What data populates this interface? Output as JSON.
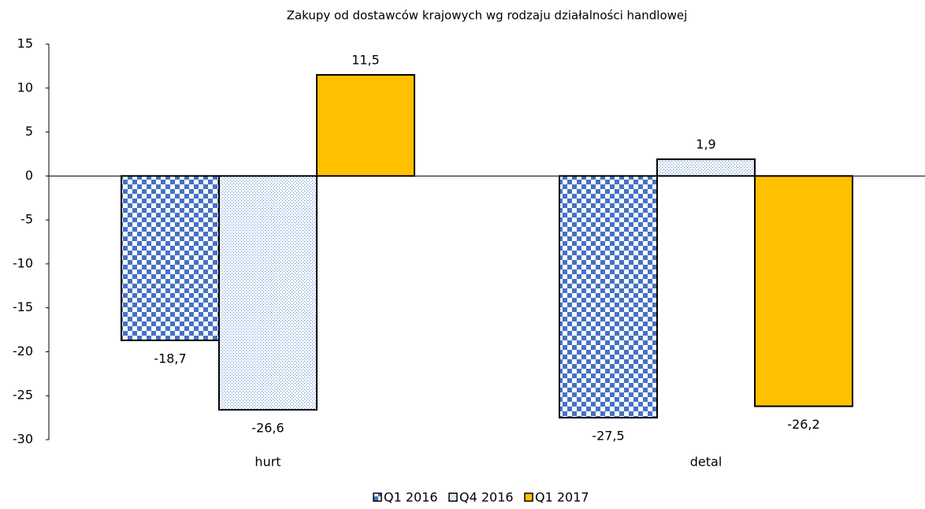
{
  "chart_data": {
    "type": "bar",
    "title": "Zakupy od dostawców krajowych wg rodzaju działalności handlowej",
    "categories": [
      "hurt",
      "detal"
    ],
    "series": [
      {
        "name": "Q1 2016",
        "color": "#4472c4",
        "pattern": "checker",
        "values": [
          -18.7,
          -27.5
        ],
        "value_labels": [
          "-18,7",
          "-27,5"
        ]
      },
      {
        "name": "Q4 2016",
        "color": "#6f9bd1",
        "pattern": "dots",
        "values": [
          -26.6,
          1.9
        ],
        "value_labels": [
          "-26,6",
          "1,9"
        ]
      },
      {
        "name": "Q1 2017",
        "color": "#ffc000",
        "pattern": "solid",
        "values": [
          11.5,
          -26.2
        ],
        "value_labels": [
          "11,5",
          "-26,2"
        ]
      }
    ],
    "ylim": [
      -30,
      15
    ],
    "yticks": [
      -30,
      -25,
      -20,
      -15,
      -10,
      -5,
      0,
      5,
      10,
      15
    ],
    "legend": "bottom"
  }
}
